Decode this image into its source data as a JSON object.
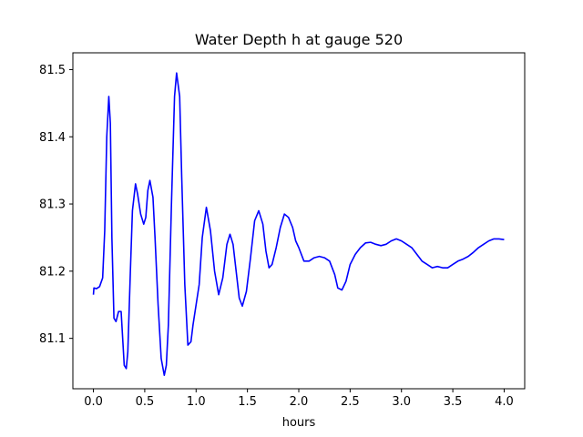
{
  "chart_data": {
    "type": "line",
    "title": "Water Depth h at gauge 520",
    "xlabel": "hours",
    "ylabel": "",
    "xlim": [
      -0.2,
      4.2
    ],
    "ylim": [
      81.025,
      81.525
    ],
    "xticks": [
      0.0,
      0.5,
      1.0,
      1.5,
      2.0,
      2.5,
      3.0,
      3.5,
      4.0
    ],
    "xtick_labels": [
      "0.0",
      "0.5",
      "1.0",
      "1.5",
      "2.0",
      "2.5",
      "3.0",
      "3.5",
      "4.0"
    ],
    "yticks": [
      81.1,
      81.2,
      81.3,
      81.4,
      81.5
    ],
    "ytick_labels": [
      "81.1",
      "81.2",
      "81.3",
      "81.4",
      "81.5"
    ],
    "grid": false,
    "series": [
      {
        "color": "#0000ff",
        "x": [
          0.0,
          0.005,
          0.03,
          0.06,
          0.09,
          0.11,
          0.13,
          0.15,
          0.165,
          0.18,
          0.2,
          0.22,
          0.245,
          0.27,
          0.285,
          0.3,
          0.32,
          0.335,
          0.36,
          0.38,
          0.41,
          0.43,
          0.46,
          0.49,
          0.51,
          0.53,
          0.55,
          0.58,
          0.6,
          0.63,
          0.66,
          0.69,
          0.71,
          0.73,
          0.76,
          0.79,
          0.81,
          0.84,
          0.86,
          0.89,
          0.92,
          0.95,
          0.97,
          1.0,
          1.03,
          1.06,
          1.1,
          1.14,
          1.18,
          1.22,
          1.26,
          1.3,
          1.33,
          1.36,
          1.39,
          1.42,
          1.45,
          1.49,
          1.53,
          1.57,
          1.61,
          1.65,
          1.68,
          1.71,
          1.74,
          1.78,
          1.82,
          1.86,
          1.9,
          1.94,
          1.97,
          2.0,
          2.05,
          2.1,
          2.15,
          2.2,
          2.25,
          2.3,
          2.35,
          2.38,
          2.42,
          2.46,
          2.5,
          2.55,
          2.6,
          2.65,
          2.7,
          2.75,
          2.8,
          2.85,
          2.9,
          2.95,
          3.0,
          3.05,
          3.1,
          3.15,
          3.2,
          3.25,
          3.3,
          3.35,
          3.4,
          3.45,
          3.5,
          3.55,
          3.6,
          3.65,
          3.7,
          3.75,
          3.8,
          3.85,
          3.9,
          3.95,
          4.0
        ],
        "y": [
          81.165,
          81.175,
          81.174,
          81.177,
          81.19,
          81.26,
          81.4,
          81.46,
          81.42,
          81.25,
          81.13,
          81.125,
          81.14,
          81.14,
          81.1,
          81.06,
          81.055,
          81.08,
          81.2,
          81.29,
          81.33,
          81.315,
          81.285,
          81.27,
          81.28,
          81.32,
          81.335,
          81.31,
          81.25,
          81.15,
          81.07,
          81.045,
          81.06,
          81.12,
          81.3,
          81.46,
          81.495,
          81.46,
          81.34,
          81.18,
          81.09,
          81.095,
          81.12,
          81.15,
          81.18,
          81.25,
          81.295,
          81.26,
          81.2,
          81.165,
          81.19,
          81.24,
          81.255,
          81.24,
          81.2,
          81.16,
          81.148,
          81.17,
          81.22,
          81.275,
          81.29,
          81.27,
          81.23,
          81.205,
          81.21,
          81.235,
          81.265,
          81.285,
          81.28,
          81.265,
          81.245,
          81.235,
          81.215,
          81.215,
          81.22,
          81.222,
          81.22,
          81.215,
          81.195,
          81.175,
          81.172,
          81.185,
          81.21,
          81.225,
          81.235,
          81.242,
          81.243,
          81.24,
          81.238,
          81.24,
          81.245,
          81.248,
          81.245,
          81.24,
          81.235,
          81.225,
          81.215,
          81.21,
          81.205,
          81.207,
          81.205,
          81.205,
          81.21,
          81.215,
          81.218,
          81.222,
          81.228,
          81.235,
          81.24,
          81.245,
          81.248,
          81.248,
          81.247
        ]
      }
    ]
  }
}
